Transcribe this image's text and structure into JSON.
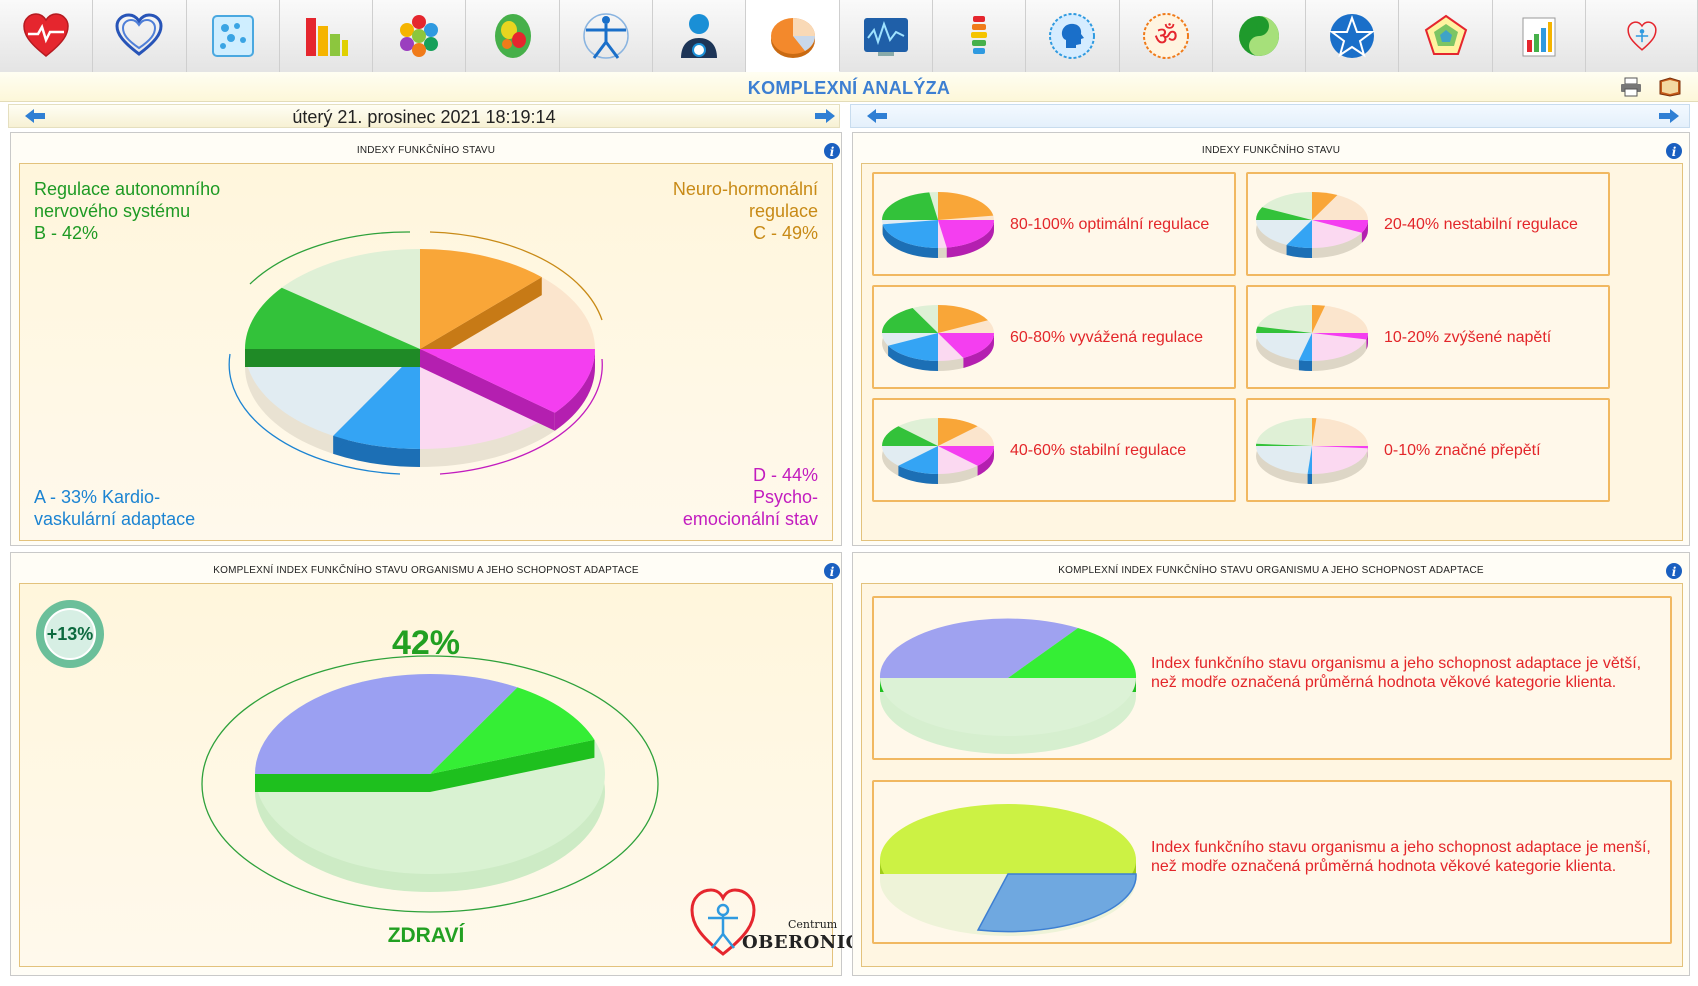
{
  "toolbar": {
    "icons": [
      "heart-cardio-icon",
      "heart-outline-icon",
      "cells-icon",
      "bar-chart-icon",
      "hexagon-molecule-icon",
      "brain-map-icon",
      "vitruvian-man-icon",
      "person-avatar-icon",
      "pie-chart-icon",
      "wave-monitor-icon",
      "spine-icon",
      "head-profile-icon",
      "om-symbol-icon",
      "yin-yang-icon",
      "pentagram-icon",
      "pentagon-chart-icon",
      "small-bars-icon",
      "oberonic-logo-icon"
    ],
    "active_index": 8
  },
  "header": {
    "title": "KOMPLEXNÍ ANALÝZA"
  },
  "datebar": {
    "date": "úterý 21. prosinec 2021 18:19:14"
  },
  "panels": {
    "top_left": {
      "title": "INDEXY FUNKČNÍHO STAVU",
      "label_b_line1": "Regulace autonomního",
      "label_b_line2": "nervového systému",
      "label_b_line3": "B - 42%",
      "label_c_line1": "Neuro-hormonální",
      "label_c_line2": "regulace",
      "label_c_line3": "C - 49%",
      "label_a_line1": "A - 33% Kardio-",
      "label_a_line2": "vaskulární adaptace",
      "label_d_line1": "D - 44%",
      "label_d_line2": "Psycho-",
      "label_d_line3": "emocionální stav"
    },
    "top_right": {
      "title": "INDEXY FUNKČNÍHO STAVU",
      "legend": [
        {
          "label": "80-100% optimální regulace",
          "fill": 0.9
        },
        {
          "label": "20-40% nestabilní regulace",
          "fill": 0.3
        },
        {
          "label": "60-80% vyvážená regulace",
          "fill": 0.7
        },
        {
          "label": "10-20% zvýšené napětí",
          "fill": 0.15
        },
        {
          "label": "40-60% stabilní regulace",
          "fill": 0.5
        },
        {
          "label": "0-10% značné přepětí",
          "fill": 0.05
        }
      ]
    },
    "bottom_left": {
      "title": "KOMPLEXNÍ INDEX FUNKČNÍHO STAVU ORGANISMU A JEHO SCHOPNOST ADAPTACE",
      "percent": "42%",
      "badge": "+13%",
      "status": "ZDRAVÍ",
      "logo_small": "Centrum",
      "logo_big": "OBERONIC"
    },
    "bottom_right": {
      "title": "KOMPLEXNÍ INDEX FUNKČNÍHO STAVU ORGANISMU A JEHO SCHOPNOST ADAPTACE",
      "card1": "Index funkčního stavu organismu a jeho schopnost adaptace je větší, než modře označená průměrná hodnota věkové kategorie klienta.",
      "card2": "Index funkčního stavu organismu a jeho schopnost adaptace je menší, než modře označená průměrná hodnota věkové kategorie klienta."
    }
  },
  "chart_data": [
    {
      "type": "pie",
      "categories": [
        "A",
        "B",
        "C",
        "D"
      ],
      "values": [
        33,
        42,
        49,
        44
      ]
    },
    {
      "type": "pie",
      "values": [
        42
      ],
      "ylim": [
        0,
        100
      ]
    }
  ]
}
